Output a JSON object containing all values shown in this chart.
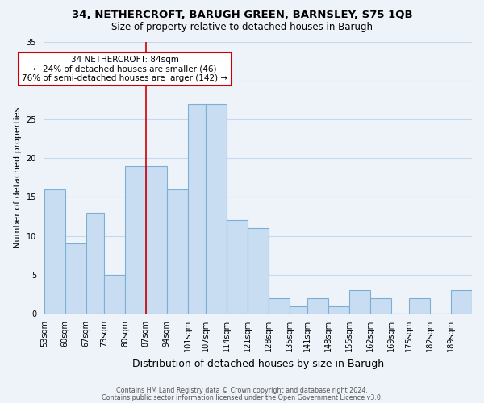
{
  "title": "34, NETHERCROFT, BARUGH GREEN, BARNSLEY, S75 1QB",
  "subtitle": "Size of property relative to detached houses in Barugh",
  "xlabel": "Distribution of detached houses by size in Barugh",
  "ylabel": "Number of detached properties",
  "footer_line1": "Contains HM Land Registry data © Crown copyright and database right 2024.",
  "footer_line2": "Contains public sector information licensed under the Open Government Licence v3.0.",
  "bar_labels": [
    "53sqm",
    "60sqm",
    "67sqm",
    "73sqm",
    "80sqm",
    "87sqm",
    "94sqm",
    "101sqm",
    "107sqm",
    "114sqm",
    "121sqm",
    "128sqm",
    "135sqm",
    "141sqm",
    "148sqm",
    "155sqm",
    "162sqm",
    "169sqm",
    "175sqm",
    "182sqm",
    "189sqm"
  ],
  "bar_values": [
    16,
    9,
    13,
    5,
    19,
    19,
    16,
    27,
    27,
    12,
    11,
    2,
    1,
    2,
    1,
    3,
    2,
    0,
    2,
    0,
    3
  ],
  "bar_color": "#c9ddf2",
  "bar_edge_color": "#7bafd4",
  "ylim": [
    0,
    35
  ],
  "yticks": [
    0,
    5,
    10,
    15,
    20,
    25,
    30,
    35
  ],
  "property_line_color": "#cc0000",
  "bin_edges": [
    53,
    60,
    67,
    73,
    80,
    87,
    94,
    101,
    107,
    114,
    121,
    128,
    135,
    141,
    148,
    155,
    162,
    169,
    175,
    182,
    189,
    196
  ],
  "grid_color": "#c8d8ec",
  "background_color": "#eef3fa",
  "annotation_text_line1": "34 NETHERCROFT: 84sqm",
  "annotation_text_line2": "← 24% of detached houses are smaller (46)",
  "annotation_text_line3": "76% of semi-detached houses are larger (142) →",
  "annotation_box_edge_color": "#cc0000",
  "title_fontsize": 9.5,
  "subtitle_fontsize": 8.5,
  "ylabel_fontsize": 8,
  "xlabel_fontsize": 9,
  "tick_fontsize": 7,
  "footer_fontsize": 5.8
}
